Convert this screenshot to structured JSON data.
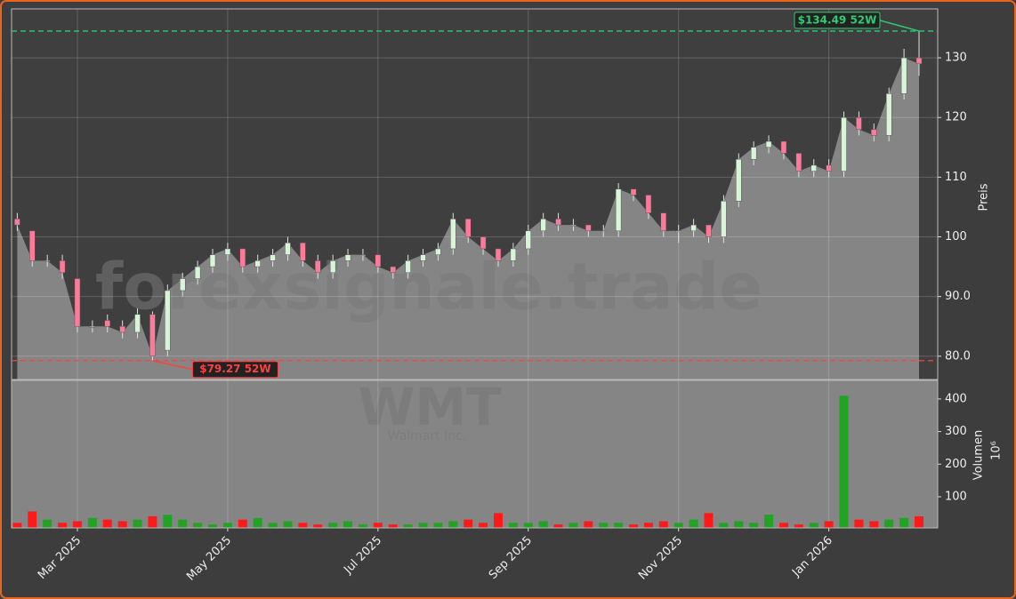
{
  "chart_data": {
    "type": "candlestick",
    "categories": [
      null,
      null,
      null,
      null,
      "Mar 2025",
      null,
      null,
      null,
      null,
      null,
      null,
      null,
      null,
      null,
      "May 2025",
      null,
      null,
      null,
      null,
      null,
      null,
      null,
      null,
      null,
      "Jul 2025",
      null,
      null,
      null,
      null,
      null,
      null,
      null,
      null,
      null,
      "Sep 2025",
      null,
      null,
      null,
      null,
      null,
      null,
      null,
      null,
      null,
      "Nov 2025",
      null,
      null,
      null,
      null,
      null,
      null,
      null,
      null,
      null,
      "Jan 2026",
      null,
      null,
      null,
      null,
      null,
      null
    ],
    "open": [
      103,
      101,
      96,
      96,
      93,
      85,
      86,
      85,
      84,
      87,
      81,
      91,
      93,
      95,
      97,
      98,
      95,
      96,
      97,
      99,
      96,
      94,
      96,
      97,
      97,
      95,
      94,
      96,
      97,
      98,
      103,
      100,
      98,
      96,
      98,
      101,
      103,
      102,
      102,
      101,
      101,
      108,
      107,
      104,
      101,
      101,
      102,
      100,
      106,
      113,
      115,
      116,
      114,
      111,
      112,
      111,
      120,
      118,
      117,
      124,
      130
    ],
    "high": [
      104,
      101,
      97,
      97,
      93,
      86,
      87,
      86,
      88,
      87.5,
      92,
      94,
      96,
      98,
      99,
      98,
      97,
      98,
      100,
      99,
      97,
      97,
      98,
      98,
      97,
      95,
      97,
      98,
      99,
      104,
      103,
      100,
      98,
      99,
      102,
      104,
      104,
      103,
      102,
      102,
      109,
      108,
      107,
      104,
      102,
      103,
      102,
      107,
      114,
      116,
      117,
      116,
      114,
      113,
      113,
      121,
      121,
      119,
      125,
      131.5,
      134.49
    ],
    "low": [
      101,
      95,
      95,
      93,
      84,
      84,
      84,
      83,
      83,
      79.27,
      80,
      90,
      92,
      94,
      96,
      94,
      94,
      95,
      96,
      95,
      93,
      93,
      95,
      96,
      94,
      93,
      93,
      95,
      96,
      97,
      99,
      97,
      95,
      95,
      97,
      100,
      101,
      101,
      100,
      100,
      100,
      106,
      103,
      100,
      99,
      100,
      99,
      99,
      105,
      112,
      114,
      113,
      110,
      110,
      110,
      110,
      117,
      116,
      116,
      123,
      127
    ],
    "close": [
      102,
      96,
      96,
      94,
      85,
      85,
      85,
      84,
      87,
      80,
      91,
      93,
      95,
      97,
      98,
      95,
      96,
      97,
      99,
      96,
      94,
      96,
      97,
      97,
      95,
      94,
      96,
      97,
      98,
      103,
      100,
      98,
      96,
      98,
      101,
      103,
      102,
      102,
      101,
      101,
      108,
      107,
      104,
      101,
      101,
      102,
      100,
      106,
      113,
      115,
      116,
      114,
      111,
      112,
      111,
      120,
      118,
      117,
      124,
      130,
      129
    ],
    "volume": [
      20,
      55,
      30,
      20,
      25,
      35,
      30,
      25,
      30,
      40,
      45,
      30,
      20,
      15,
      20,
      30,
      35,
      20,
      25,
      20,
      15,
      20,
      25,
      15,
      20,
      15,
      15,
      20,
      20,
      25,
      30,
      20,
      50,
      20,
      20,
      25,
      15,
      20,
      25,
      20,
      20,
      15,
      20,
      25,
      20,
      30,
      50,
      20,
      25,
      20,
      45,
      20,
      15,
      20,
      25,
      410,
      30,
      25,
      30,
      35,
      40
    ],
    "ylim": [
      76.1,
      138.2
    ],
    "yticks": [
      {
        "value": 80,
        "label": "80.0"
      },
      {
        "value": 90,
        "label": "90.0"
      },
      100,
      110,
      120,
      130
    ],
    "y_label": "Preis",
    "volume_ylim": [
      4.5,
      457
    ],
    "volume_yticks": [
      100,
      200,
      300,
      400
    ],
    "volume_label": "Volumen",
    "volume_scale_label": "10⁶",
    "up_color": "#d8f5d8",
    "down_color": "#ff7a9a",
    "volume_up_color": "#23a323",
    "volume_down_color": "#ff1a1a",
    "area_color": "#858585",
    "grid": true,
    "annotations": [
      {
        "value": 134.49,
        "label": "$134.49 52W",
        "color": "#2ecc71"
      },
      {
        "value": 79.27,
        "label": "$79.27 52W",
        "color": "#ff4040"
      }
    ],
    "watermark": "forexsignale.trade",
    "ticker": "WMT",
    "company": "Walmart Inc."
  }
}
